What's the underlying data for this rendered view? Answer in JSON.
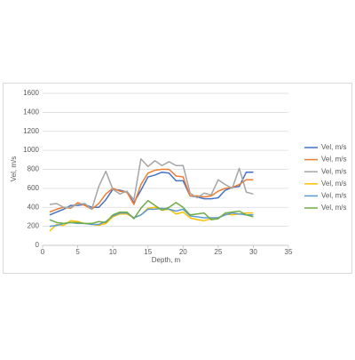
{
  "chart_data": {
    "type": "line",
    "x_label": "Depth, m",
    "y_label": "Vel, m/s",
    "x": [
      1,
      2,
      3,
      4,
      5,
      6,
      7,
      8,
      9,
      10,
      11,
      12,
      13,
      14,
      15,
      16,
      17,
      18,
      19,
      20,
      21,
      22,
      23,
      24,
      25,
      26,
      27,
      28,
      29,
      30
    ],
    "xlim": [
      0,
      35
    ],
    "xticks": [
      0,
      5,
      10,
      15,
      20,
      25,
      30,
      35
    ],
    "ylim": [
      0,
      1600
    ],
    "yticks": [
      0,
      200,
      400,
      600,
      800,
      1000,
      1200,
      1400,
      1600
    ],
    "grid": true,
    "legend": "right",
    "series": [
      {
        "name": "Vel, m/s",
        "color": "#4472c4",
        "values": [
          320,
          350,
          380,
          420,
          420,
          430,
          400,
          400,
          480,
          590,
          580,
          560,
          450,
          580,
          720,
          740,
          770,
          760,
          680,
          680,
          520,
          510,
          490,
          490,
          500,
          580,
          610,
          620,
          770,
          770
        ]
      },
      {
        "name": "Vel, m/s",
        "color": "#ed7d31",
        "values": [
          350,
          380,
          400,
          390,
          450,
          420,
          380,
          440,
          540,
          600,
          570,
          560,
          430,
          640,
          760,
          790,
          800,
          800,
          730,
          720,
          520,
          520,
          510,
          520,
          570,
          600,
          610,
          640,
          690,
          690
        ]
      },
      {
        "name": "Vel, m/s",
        "color": "#a5a5a5",
        "values": [
          430,
          440,
          400,
          400,
          430,
          440,
          380,
          620,
          780,
          590,
          540,
          570,
          480,
          910,
          830,
          890,
          840,
          880,
          840,
          840,
          550,
          500,
          550,
          530,
          690,
          640,
          600,
          810,
          560,
          540
        ]
      },
      {
        "name": "Vel, m/s",
        "color": "#ffc000",
        "values": [
          150,
          220,
          210,
          260,
          250,
          230,
          220,
          210,
          230,
          300,
          330,
          330,
          290,
          320,
          390,
          400,
          370,
          380,
          330,
          350,
          290,
          270,
          260,
          280,
          290,
          330,
          320,
          330,
          340,
          340
        ]
      },
      {
        "name": "Vel, m/s",
        "color": "#5b9bd5",
        "values": [
          200,
          210,
          230,
          240,
          230,
          230,
          220,
          220,
          250,
          310,
          340,
          340,
          290,
          320,
          380,
          380,
          390,
          380,
          360,
          380,
          310,
          300,
          290,
          290,
          290,
          320,
          340,
          330,
          320,
          320
        ]
      },
      {
        "name": "Vel, m/s",
        "color": "#70ad47",
        "values": [
          270,
          240,
          230,
          240,
          240,
          230,
          230,
          250,
          240,
          320,
          350,
          350,
          280,
          390,
          470,
          420,
          370,
          400,
          450,
          400,
          320,
          330,
          340,
          270,
          280,
          340,
          350,
          360,
          320,
          300
        ]
      }
    ]
  }
}
